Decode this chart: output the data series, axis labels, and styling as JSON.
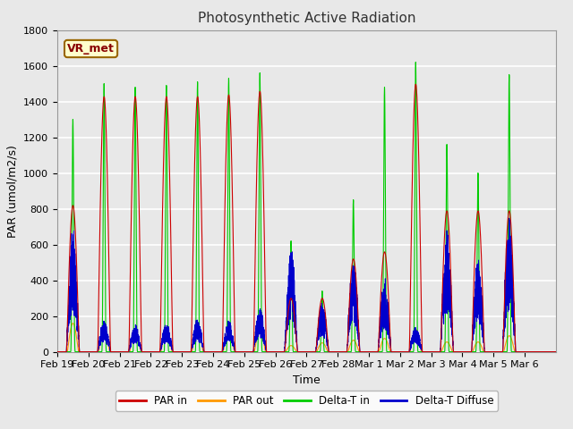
{
  "title": "Photosynthetic Active Radiation",
  "ylabel": "PAR (umol/m2/s)",
  "xlabel": "Time",
  "label_text": "VR_met",
  "legend": [
    "PAR in",
    "PAR out",
    "Delta-T in",
    "Delta-T Diffuse"
  ],
  "colors": {
    "par_in": "#cc0000",
    "par_out": "#ff9900",
    "delta_t_in": "#00cc00",
    "delta_t_diffuse": "#0000cc"
  },
  "ylim": [
    0,
    1800
  ],
  "bg_color": "#e8e8e8",
  "axes_bg": "#e8e8e8",
  "title_fontsize": 11,
  "label_fontsize": 9,
  "tick_fontsize": 8,
  "day_peaks": {
    "Feb19": {
      "par_in": 820,
      "par_out": 160,
      "delta_t_in": 1300,
      "delta_t_diffuse": 700
    },
    "Feb20": {
      "par_in": 1430,
      "par_out": 120,
      "delta_t_in": 1500,
      "delta_t_diffuse": 180
    },
    "Feb21": {
      "par_in": 1430,
      "par_out": 110,
      "delta_t_in": 1480,
      "delta_t_diffuse": 155
    },
    "Feb22": {
      "par_in": 1430,
      "par_out": 110,
      "delta_t_in": 1490,
      "delta_t_diffuse": 160
    },
    "Feb23": {
      "par_in": 1430,
      "par_out": 125,
      "delta_t_in": 1510,
      "delta_t_diffuse": 185
    },
    "Feb24": {
      "par_in": 1440,
      "par_out": 115,
      "delta_t_in": 1530,
      "delta_t_diffuse": 175
    },
    "Feb25": {
      "par_in": 1460,
      "par_out": 120,
      "delta_t_in": 1560,
      "delta_t_diffuse": 250
    },
    "Feb26": {
      "par_in": 300,
      "par_out": 35,
      "delta_t_in": 620,
      "delta_t_diffuse": 600
    },
    "Feb27": {
      "par_in": 300,
      "par_out": 50,
      "delta_t_in": 340,
      "delta_t_diffuse": 280
    },
    "Feb28": {
      "par_in": 520,
      "par_out": 65,
      "delta_t_in": 850,
      "delta_t_diffuse": 530
    },
    "Mar1": {
      "par_in": 560,
      "par_out": 75,
      "delta_t_in": 1480,
      "delta_t_diffuse": 420
    },
    "Mar2": {
      "par_in": 1500,
      "par_out": 125,
      "delta_t_in": 1620,
      "delta_t_diffuse": 140
    },
    "Mar3": {
      "par_in": 790,
      "par_out": 55,
      "delta_t_in": 1160,
      "delta_t_diffuse": 700
    },
    "Mar4": {
      "par_in": 790,
      "par_out": 55,
      "delta_t_in": 1000,
      "delta_t_diffuse": 520
    },
    "Mar5": {
      "par_in": 790,
      "par_out": 90,
      "delta_t_in": 1550,
      "delta_t_diffuse": 760
    }
  },
  "tick_labels": [
    "Feb 19",
    "Feb 20",
    "Feb 21",
    "Feb 22",
    "Feb 23",
    "Feb 24",
    "Feb 25",
    "Feb 26",
    "Feb 27",
    "Feb 28",
    "Mar 1",
    "Mar 2",
    "Mar 3",
    "Mar 4",
    "Mar 5",
    "Mar 6"
  ],
  "yticks": [
    0,
    200,
    400,
    600,
    800,
    1000,
    1200,
    1400,
    1600,
    1800
  ]
}
